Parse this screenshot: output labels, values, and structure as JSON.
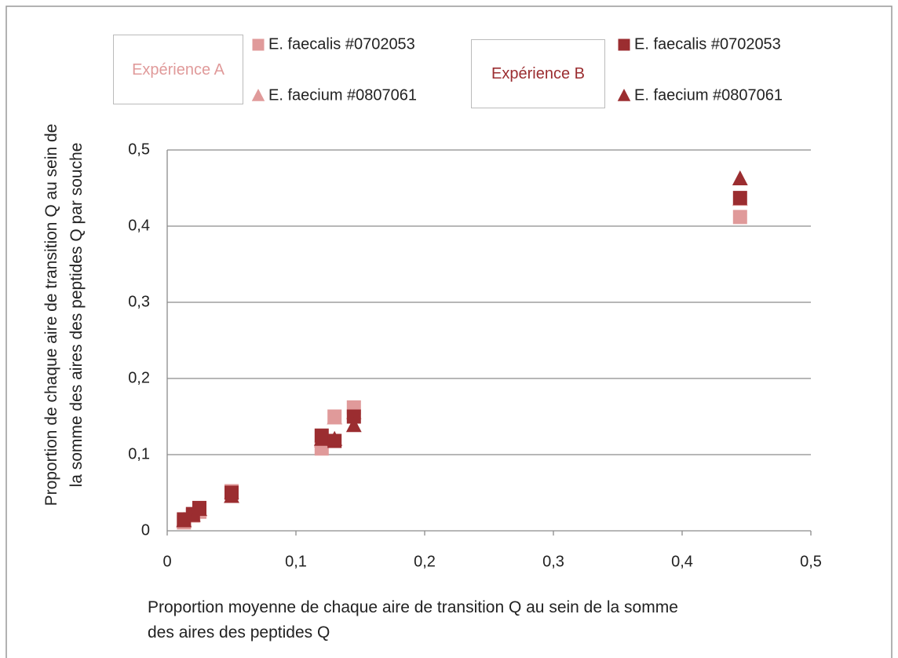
{
  "chart_data": {
    "type": "scatter",
    "ylabel": "Proportion de chaque aire de transition Q au sein de la somme des aires des peptides Q par souche",
    "xlabel": "Proportion moyenne de chaque aire de transition Q au sein de la somme des aires des peptides Q",
    "annotations": [
      {
        "text": "Expérience A",
        "color": "#e09a9a"
      },
      {
        "text": "Expérience B",
        "color": "#9b2d30"
      }
    ],
    "xlim": [
      0,
      0.5
    ],
    "ylim": [
      0,
      0.5
    ],
    "xticks": [
      0,
      {
        "value": 0.1,
        "label": "0,1"
      },
      {
        "value": 0.2,
        "label": "0,2"
      },
      {
        "value": 0.3,
        "label": "0,3"
      },
      {
        "value": 0.4,
        "label": "0,4"
      },
      {
        "value": 0.5,
        "label": "0,5"
      }
    ],
    "yticks": [
      0,
      {
        "value": 0.1,
        "label": "0,1"
      },
      {
        "value": 0.2,
        "label": "0,2"
      },
      {
        "value": 0.3,
        "label": "0,3"
      },
      {
        "value": 0.4,
        "label": "0,4"
      },
      {
        "value": 0.5,
        "label": "0,5"
      }
    ],
    "grid": true,
    "series": [
      {
        "name": "E. faecalis #0702053",
        "color": "#e09a9a",
        "marker": "square",
        "x": [
          0.013,
          0.02,
          0.025,
          0.05,
          0.12,
          0.13,
          0.145,
          0.445
        ],
        "values": [
          0.011,
          0.02,
          0.025,
          0.052,
          0.108,
          0.15,
          0.162,
          0.412
        ]
      },
      {
        "name": "E. faecium #0807061",
        "color": "#e09a9a",
        "marker": "triangle",
        "x": [
          0.013,
          0.02,
          0.025,
          0.05,
          0.12,
          0.13,
          0.145,
          0.445
        ],
        "values": [
          0.014,
          0.022,
          0.027,
          0.05,
          0.118,
          0.148,
          0.155,
          0.435
        ]
      },
      {
        "name": "E. faecalis #0702053",
        "color": "#9b2d30",
        "marker": "square",
        "x": [
          0.013,
          0.02,
          0.025,
          0.05,
          0.12,
          0.13,
          0.145,
          0.445
        ],
        "values": [
          0.015,
          0.022,
          0.03,
          0.05,
          0.125,
          0.118,
          0.15,
          0.437
        ]
      },
      {
        "name": "E. faecium #0807061",
        "color": "#9b2d30",
        "marker": "triangle",
        "x": [
          0.013,
          0.02,
          0.025,
          0.05,
          0.12,
          0.13,
          0.145,
          0.445
        ],
        "values": [
          0.013,
          0.02,
          0.028,
          0.045,
          0.12,
          0.12,
          0.138,
          0.462
        ]
      }
    ]
  }
}
